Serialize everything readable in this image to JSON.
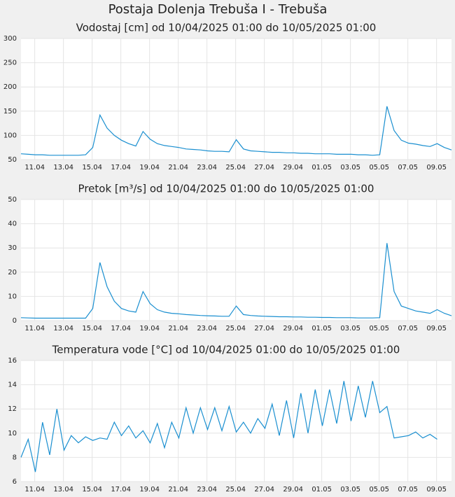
{
  "title": "Postaja Dolenja Trebuša I - Trebuša",
  "chart_data": [
    {
      "type": "line",
      "title": "Vodostaj [cm] od 10/04/2025 01:00 do 10/05/2025 01:00",
      "color": "#1a8fd0",
      "grid": true,
      "xlim": [
        "2025-04-10T01:00",
        "2025-05-10T01:00"
      ],
      "xticks": [
        {
          "value": "2025-04-11T00:00",
          "label": "11.04"
        },
        {
          "value": "2025-04-13T00:00",
          "label": "13.04"
        },
        {
          "value": "2025-04-15T00:00",
          "label": "15.04"
        },
        {
          "value": "2025-04-17T00:00",
          "label": "17.04"
        },
        {
          "value": "2025-04-19T00:00",
          "label": "19.04"
        },
        {
          "value": "2025-04-21T00:00",
          "label": "21.04"
        },
        {
          "value": "2025-04-23T00:00",
          "label": "23.04"
        },
        {
          "value": "2025-04-25T00:00",
          "label": "25.04"
        },
        {
          "value": "2025-04-27T00:00",
          "label": "27.04"
        },
        {
          "value": "2025-04-29T00:00",
          "label": "29.04"
        },
        {
          "value": "2025-05-01T00:00",
          "label": "01.05"
        },
        {
          "value": "2025-05-03T00:00",
          "label": "03.05"
        },
        {
          "value": "2025-05-05T00:00",
          "label": "05.05"
        },
        {
          "value": "2025-05-07T00:00",
          "label": "07.05"
        },
        {
          "value": "2025-05-09T00:00",
          "label": "09.05"
        }
      ],
      "ylim": [
        50,
        300
      ],
      "yticks": [
        50,
        100,
        150,
        200,
        250,
        300
      ],
      "x": [
        "2025-04-10T01:00",
        "2025-04-10T13:00",
        "2025-04-11T01:00",
        "2025-04-11T13:00",
        "2025-04-12T01:00",
        "2025-04-12T13:00",
        "2025-04-13T01:00",
        "2025-04-13T13:00",
        "2025-04-14T01:00",
        "2025-04-14T13:00",
        "2025-04-15T01:00",
        "2025-04-15T13:00",
        "2025-04-16T01:00",
        "2025-04-16T13:00",
        "2025-04-17T01:00",
        "2025-04-17T13:00",
        "2025-04-18T01:00",
        "2025-04-18T13:00",
        "2025-04-19T01:00",
        "2025-04-19T13:00",
        "2025-04-20T01:00",
        "2025-04-20T13:00",
        "2025-04-21T01:00",
        "2025-04-21T13:00",
        "2025-04-22T01:00",
        "2025-04-22T13:00",
        "2025-04-23T01:00",
        "2025-04-23T13:00",
        "2025-04-24T01:00",
        "2025-04-24T13:00",
        "2025-04-25T01:00",
        "2025-04-25T13:00",
        "2025-04-26T01:00",
        "2025-04-26T13:00",
        "2025-04-27T01:00",
        "2025-04-27T13:00",
        "2025-04-28T01:00",
        "2025-04-28T13:00",
        "2025-04-29T01:00",
        "2025-04-29T13:00",
        "2025-04-30T01:00",
        "2025-04-30T13:00",
        "2025-05-01T01:00",
        "2025-05-01T13:00",
        "2025-05-02T01:00",
        "2025-05-02T13:00",
        "2025-05-03T01:00",
        "2025-05-03T13:00",
        "2025-05-04T01:00",
        "2025-05-04T13:00",
        "2025-05-05T01:00",
        "2025-05-05T13:00",
        "2025-05-06T01:00",
        "2025-05-06T13:00",
        "2025-05-07T01:00",
        "2025-05-07T13:00",
        "2025-05-08T01:00",
        "2025-05-08T13:00",
        "2025-05-09T01:00",
        "2025-05-09T13:00",
        "2025-05-10T01:00"
      ],
      "values": [
        62,
        61,
        60,
        60,
        59,
        59,
        59,
        59,
        59,
        60,
        75,
        142,
        115,
        100,
        90,
        83,
        78,
        108,
        92,
        83,
        79,
        77,
        75,
        72,
        71,
        70,
        68,
        67,
        67,
        66,
        91,
        72,
        68,
        67,
        66,
        65,
        65,
        64,
        64,
        63,
        63,
        62,
        62,
        62,
        61,
        61,
        61,
        60,
        60,
        59,
        60,
        160,
        110,
        90,
        84,
        82,
        79,
        77,
        83,
        75,
        70
      ]
    },
    {
      "type": "line",
      "title": "Pretok [m³/s] od 10/04/2025 01:00 do 10/05/2025 01:00",
      "color": "#1a8fd0",
      "grid": true,
      "xlim": [
        "2025-04-10T01:00",
        "2025-05-10T01:00"
      ],
      "xticks": [
        {
          "value": "2025-04-11T00:00",
          "label": "11.04"
        },
        {
          "value": "2025-04-13T00:00",
          "label": "13.04"
        },
        {
          "value": "2025-04-15T00:00",
          "label": "15.04"
        },
        {
          "value": "2025-04-17T00:00",
          "label": "17.04"
        },
        {
          "value": "2025-04-19T00:00",
          "label": "19.04"
        },
        {
          "value": "2025-04-21T00:00",
          "label": "21.04"
        },
        {
          "value": "2025-04-23T00:00",
          "label": "23.04"
        },
        {
          "value": "2025-04-25T00:00",
          "label": "25.04"
        },
        {
          "value": "2025-04-27T00:00",
          "label": "27.04"
        },
        {
          "value": "2025-04-29T00:00",
          "label": "29.04"
        },
        {
          "value": "2025-05-01T00:00",
          "label": "01.05"
        },
        {
          "value": "2025-05-03T00:00",
          "label": "03.05"
        },
        {
          "value": "2025-05-05T00:00",
          "label": "05.05"
        },
        {
          "value": "2025-05-07T00:00",
          "label": "07.05"
        },
        {
          "value": "2025-05-09T00:00",
          "label": "09.05"
        }
      ],
      "ylim": [
        0,
        50
      ],
      "yticks": [
        0,
        10,
        20,
        30,
        40,
        50
      ],
      "x": [
        "2025-04-10T01:00",
        "2025-04-10T13:00",
        "2025-04-11T01:00",
        "2025-04-11T13:00",
        "2025-04-12T01:00",
        "2025-04-12T13:00",
        "2025-04-13T01:00",
        "2025-04-13T13:00",
        "2025-04-14T01:00",
        "2025-04-14T13:00",
        "2025-04-15T01:00",
        "2025-04-15T13:00",
        "2025-04-16T01:00",
        "2025-04-16T13:00",
        "2025-04-17T01:00",
        "2025-04-17T13:00",
        "2025-04-18T01:00",
        "2025-04-18T13:00",
        "2025-04-19T01:00",
        "2025-04-19T13:00",
        "2025-04-20T01:00",
        "2025-04-20T13:00",
        "2025-04-21T01:00",
        "2025-04-21T13:00",
        "2025-04-22T01:00",
        "2025-04-22T13:00",
        "2025-04-23T01:00",
        "2025-04-23T13:00",
        "2025-04-24T01:00",
        "2025-04-24T13:00",
        "2025-04-25T01:00",
        "2025-04-25T13:00",
        "2025-04-26T01:00",
        "2025-04-26T13:00",
        "2025-04-27T01:00",
        "2025-04-27T13:00",
        "2025-04-28T01:00",
        "2025-04-28T13:00",
        "2025-04-29T01:00",
        "2025-04-29T13:00",
        "2025-04-30T01:00",
        "2025-04-30T13:00",
        "2025-05-01T01:00",
        "2025-05-01T13:00",
        "2025-05-02T01:00",
        "2025-05-02T13:00",
        "2025-05-03T01:00",
        "2025-05-03T13:00",
        "2025-05-04T01:00",
        "2025-05-04T13:00",
        "2025-05-05T01:00",
        "2025-05-05T13:00",
        "2025-05-06T01:00",
        "2025-05-06T13:00",
        "2025-05-07T01:00",
        "2025-05-07T13:00",
        "2025-05-08T01:00",
        "2025-05-08T13:00",
        "2025-05-09T01:00",
        "2025-05-09T13:00",
        "2025-05-10T01:00"
      ],
      "values": [
        1.2,
        1.1,
        1,
        1,
        1,
        1,
        1,
        1,
        1,
        1,
        5,
        24,
        14,
        8,
        5,
        4,
        3.5,
        12,
        7,
        4.5,
        3.5,
        3,
        2.8,
        2.5,
        2.3,
        2.1,
        2,
        1.9,
        1.8,
        1.8,
        6,
        2.5,
        2.1,
        1.9,
        1.8,
        1.7,
        1.6,
        1.6,
        1.5,
        1.5,
        1.4,
        1.4,
        1.3,
        1.3,
        1.2,
        1.2,
        1.2,
        1.1,
        1.1,
        1.1,
        1.2,
        32,
        12,
        6,
        5,
        4,
        3.5,
        3,
        4.5,
        3,
        2
      ]
    },
    {
      "type": "line",
      "title": "Temperatura vode [°C] od 10/04/2025 01:00 do 10/05/2025 01:00",
      "color": "#1a8fd0",
      "grid": true,
      "xlim": [
        "2025-04-10T01:00",
        "2025-05-10T01:00"
      ],
      "xticks": [
        {
          "value": "2025-04-11T00:00",
          "label": "11.04"
        },
        {
          "value": "2025-04-13T00:00",
          "label": "13.04"
        },
        {
          "value": "2025-04-15T00:00",
          "label": "15.04"
        },
        {
          "value": "2025-04-17T00:00",
          "label": "17.04"
        },
        {
          "value": "2025-04-19T00:00",
          "label": "19.04"
        },
        {
          "value": "2025-04-21T00:00",
          "label": "21.04"
        },
        {
          "value": "2025-04-23T00:00",
          "label": "23.04"
        },
        {
          "value": "2025-04-25T00:00",
          "label": "25.04"
        },
        {
          "value": "2025-04-27T00:00",
          "label": "27.04"
        },
        {
          "value": "2025-04-29T00:00",
          "label": "29.04"
        },
        {
          "value": "2025-05-01T00:00",
          "label": "01.05"
        },
        {
          "value": "2025-05-03T00:00",
          "label": "03.05"
        },
        {
          "value": "2025-05-05T00:00",
          "label": "05.05"
        },
        {
          "value": "2025-05-07T00:00",
          "label": "07.05"
        },
        {
          "value": "2025-05-09T00:00",
          "label": "09.05"
        }
      ],
      "ylim": [
        6,
        16
      ],
      "yticks": [
        6,
        8,
        10,
        12,
        14,
        16
      ],
      "x": [
        "2025-04-10T01:00",
        "2025-04-10T13:00",
        "2025-04-11T01:00",
        "2025-04-11T13:00",
        "2025-04-12T01:00",
        "2025-04-12T13:00",
        "2025-04-13T01:00",
        "2025-04-13T13:00",
        "2025-04-14T01:00",
        "2025-04-14T13:00",
        "2025-04-15T01:00",
        "2025-04-15T13:00",
        "2025-04-16T01:00",
        "2025-04-16T13:00",
        "2025-04-17T01:00",
        "2025-04-17T13:00",
        "2025-04-18T01:00",
        "2025-04-18T13:00",
        "2025-04-19T01:00",
        "2025-04-19T13:00",
        "2025-04-20T01:00",
        "2025-04-20T13:00",
        "2025-04-21T01:00",
        "2025-04-21T13:00",
        "2025-04-22T01:00",
        "2025-04-22T13:00",
        "2025-04-23T01:00",
        "2025-04-23T13:00",
        "2025-04-24T01:00",
        "2025-04-24T13:00",
        "2025-04-25T01:00",
        "2025-04-25T13:00",
        "2025-04-26T01:00",
        "2025-04-26T13:00",
        "2025-04-27T01:00",
        "2025-04-27T13:00",
        "2025-04-28T01:00",
        "2025-04-28T13:00",
        "2025-04-29T01:00",
        "2025-04-29T13:00",
        "2025-04-30T01:00",
        "2025-04-30T13:00",
        "2025-05-01T01:00",
        "2025-05-01T13:00",
        "2025-05-02T01:00",
        "2025-05-02T13:00",
        "2025-05-03T01:00",
        "2025-05-03T13:00",
        "2025-05-04T01:00",
        "2025-05-04T13:00",
        "2025-05-05T01:00",
        "2025-05-05T13:00",
        "2025-05-06T01:00",
        "2025-05-06T13:00",
        "2025-05-07T01:00",
        "2025-05-07T13:00",
        "2025-05-08T01:00",
        "2025-05-08T13:00",
        "2025-05-09T01:00",
        "2025-05-09T13:00",
        "2025-05-10T01:00"
      ],
      "values": [
        8.0,
        9.5,
        6.8,
        10.9,
        8.2,
        12.0,
        8.6,
        9.8,
        9.2,
        9.7,
        9.4,
        9.6,
        9.5,
        10.9,
        9.8,
        10.6,
        9.6,
        10.2,
        9.2,
        10.8,
        8.8,
        10.9,
        9.6,
        12.1,
        10.0,
        12.1,
        10.3,
        12.1,
        10.2,
        12.2,
        10.1,
        10.9,
        10.0,
        11.2,
        10.4,
        12.4,
        9.8,
        12.7,
        9.6,
        13.3,
        10.0,
        13.6,
        10.6,
        13.6,
        10.8,
        14.3,
        11.0,
        13.9,
        11.3,
        14.3,
        11.7,
        12.2,
        9.6,
        9.7,
        9.8,
        10.1,
        9.6,
        9.9,
        9.5,
        null,
        null
      ]
    }
  ]
}
